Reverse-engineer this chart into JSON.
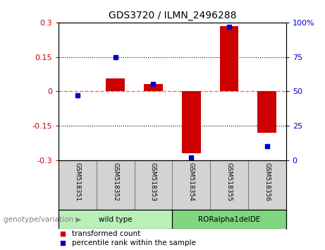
{
  "title": "GDS3720 / ILMN_2496288",
  "samples": [
    "GSM518351",
    "GSM518352",
    "GSM518353",
    "GSM518354",
    "GSM518355",
    "GSM518356"
  ],
  "red_values": [
    0.0,
    0.055,
    0.03,
    -0.27,
    0.285,
    -0.18
  ],
  "blue_values": [
    47,
    75,
    55,
    2,
    97,
    10
  ],
  "ylim_left": [
    -0.3,
    0.3
  ],
  "ylim_right": [
    0,
    100
  ],
  "yticks_left": [
    -0.3,
    -0.15,
    0.0,
    0.15,
    0.3
  ],
  "yticks_right": [
    0,
    25,
    50,
    75,
    100
  ],
  "red_color": "#CC0000",
  "blue_color": "#0000CC",
  "zero_line_color": "#FF6666",
  "bar_width": 0.5,
  "legend_red": "transformed count",
  "legend_blue": "percentile rank within the sample",
  "genotype_label": "genotype/variation",
  "tick_bg_color": "#d3d3d3",
  "group_defs": [
    {
      "start": 0,
      "end": 2,
      "label": "wild type",
      "color": "#b8f0b8"
    },
    {
      "start": 3,
      "end": 5,
      "label": "RORalpha1delDE",
      "color": "#7FD67F"
    }
  ]
}
